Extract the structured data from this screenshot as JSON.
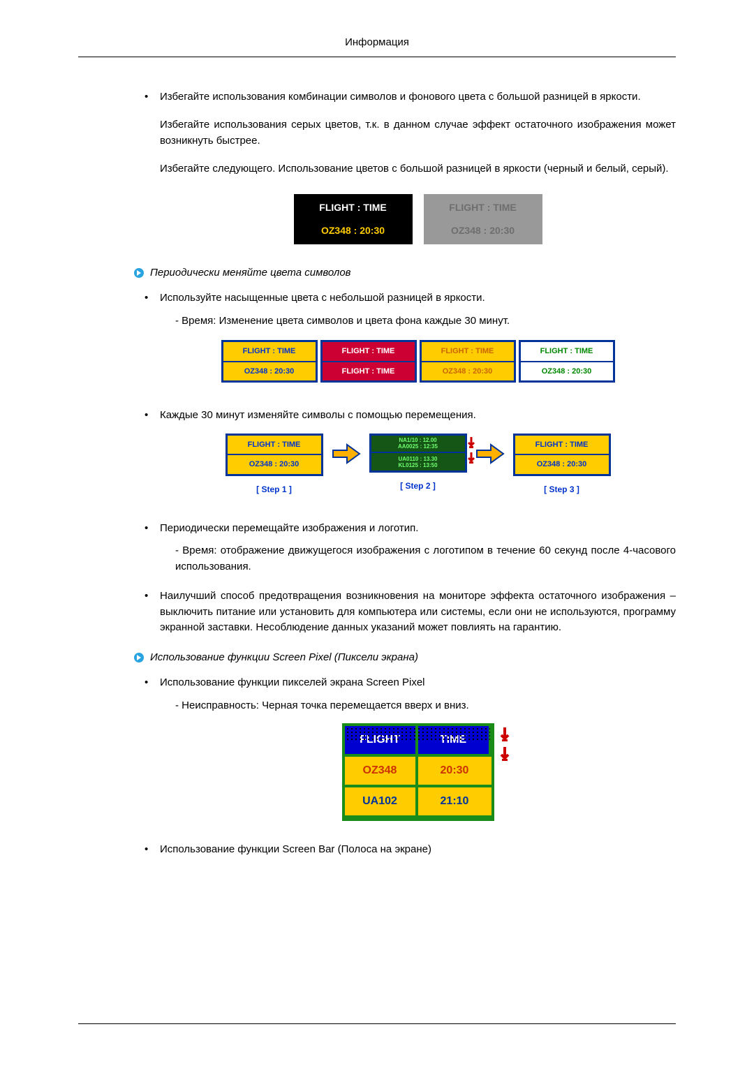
{
  "header": "Информация",
  "para1": "Избегайте использования комбинации символов и фонового цвета с большой разницей в яркости.",
  "para2": "Избегайте использования серых цветов, т.к. в данном случае эффект остаточного изображения может возникнуть быстрее.",
  "para3": "Избегайте следующего. Использование цветов с большой разницей в яркости (черный и белый, серый).",
  "fig1": {
    "black": {
      "line1": "FLIGHT  :  TIME",
      "line2": "OZ348     :  20:30",
      "bg": "#000000",
      "c1": "#ffffff",
      "c2": "#ffcc00"
    },
    "gray": {
      "line1": "FLIGHT  :  TIME",
      "line2": "OZ348     :  20:30",
      "bg": "#9a9a9a",
      "c1": "#6e6e6e",
      "c2": "#6e6e6e"
    }
  },
  "callout1": "Периодически меняйте цвета символов",
  "bullet_b1": "Используйте насыщенные цвета с небольшой разницей в яркости.",
  "bullet_b1_sub": "- Время: Изменение цвета символов и цвета фона каждые 30 минут.",
  "fig2": {
    "boxes": [
      {
        "line1": "FLIGHT  :  TIME",
        "line2": "OZ348    : 20:30",
        "border": "#003399",
        "bg": "#ffcc00",
        "t1": "#0033cc",
        "t2": "#0033cc"
      },
      {
        "line1": "FLIGHT  :  TIME",
        "line2": "FLIGHT  :  TIME",
        "border": "#003399",
        "bg": "#cc0033",
        "t1": "#ffffff",
        "t2": "#ffffff"
      },
      {
        "line1": "FLIGHT  :  TIME",
        "line2": "OZ348    : 20:30",
        "border": "#003399",
        "bg": "#ffcc00",
        "t1": "#cc6600",
        "t2": "#cc6600"
      },
      {
        "line1": "FLIGHT  :  TIME",
        "line2": "OZ348    : 20:30",
        "border": "#003399",
        "bg": "#ffffff",
        "t1": "#008800",
        "t2": "#008800"
      }
    ]
  },
  "bullet_b2": "Каждые 30 минут изменяйте символы с помощью перемещения.",
  "fig3": {
    "step1": {
      "line1": "FLIGHT  :  TIME",
      "line2": "OZ348    : 20:30",
      "border": "#003399",
      "bg": "#ffcc00",
      "t1": "#0033cc",
      "t2": "#0033cc",
      "caption": "[  Step 1  ]"
    },
    "step2": {
      "blur1": "NA1/10  :  12.00",
      "blur2": "AA0025  :  12:35",
      "blur3": "UA0110  :  13.30",
      "blur4": "KL0125  :  13:50",
      "border": "#003399",
      "bg": "#155515",
      "tcolor": "#6fff6f",
      "caption": "[  Step 2  ]"
    },
    "step3": {
      "line1": "FLIGHT  :  TIME",
      "line2": "OZ348    : 20:30",
      "border": "#003399",
      "bg": "#ffcc00",
      "t1": "#0033cc",
      "t2": "#0033cc",
      "caption": "[  Step 3  ]"
    },
    "arrow_fill": "#ffb000",
    "arrow_stroke": "#003399",
    "small_arrow_fill": "#cc0000"
  },
  "bullet_b3": "Периодически перемещайте изображения и логотип.",
  "bullet_b3_sub": "- Время: отображение движущегося изображения с логотипом в течение 60 секунд после 4-часового использования.",
  "bullet_b4": "Наилучший способ предотвращения возникновения на мониторе эффекта остаточного изображения – выключить питание или установить для компьютера или системы, если они не используются, программу экранной заставки. Несоблюдение данных указаний может повлиять на гарантию.",
  "callout2": "Использование функции Screen Pixel (Пиксели экрана)",
  "bullet_c1": "Использование функции пикселей экрана Screen Pixel",
  "bullet_c1_sub": "- Неисправность: Черная точка перемещается вверх и вниз.",
  "fig4": {
    "headers": [
      "FLIGHT",
      "TIME"
    ],
    "rows": [
      [
        "OZ348",
        "20:30"
      ],
      [
        "UA102",
        "21:10"
      ]
    ],
    "border": "#1a8c1a",
    "header_bg": "#0000d0",
    "header_color": "#ffffff",
    "row_bg": "#ffcc00",
    "row1_color": "#cc3300",
    "row2_color": "#003399",
    "dot_color": "#000000",
    "arrow_color": "#cc0000"
  },
  "bullet_c2": "Использование функции Screen Bar (Полоса на экране)",
  "icon_colors": {
    "circle": "#2aa4e0",
    "arrow": "#ffffff"
  }
}
